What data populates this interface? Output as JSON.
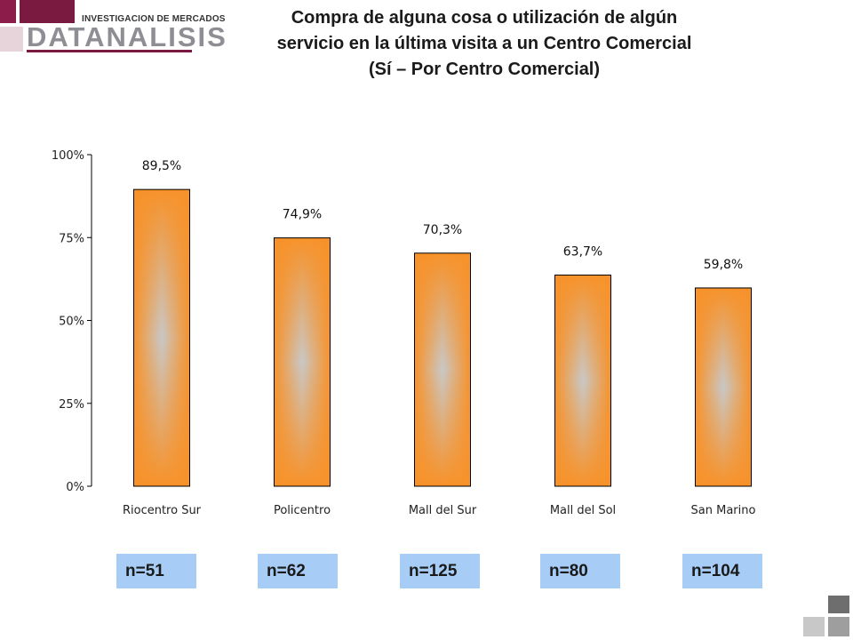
{
  "logo": {
    "subtitle": "INVESTIGACION DE MERCADOS",
    "name": "DATANALISIS"
  },
  "title": {
    "line1": "Compra de alguna cosa o utilización de algún",
    "line2": "servicio en la última visita a un Centro Comercial",
    "line3": "(Sí – Por Centro Comercial)"
  },
  "chart_data": {
    "type": "bar",
    "categories": [
      "Riocentro Sur",
      "Policentro",
      "Mall del Sur",
      "Mall del Sol",
      "San Marino"
    ],
    "values": [
      89.5,
      74.9,
      70.3,
      63.7,
      59.8
    ],
    "value_labels": [
      "89,5%",
      "74,9%",
      "70,3%",
      "63,7%",
      "59,8%"
    ],
    "ylim": [
      0,
      100
    ],
    "yticks": [
      0,
      25,
      50,
      75,
      100
    ],
    "ytick_labels": [
      "0%",
      "25%",
      "50%",
      "75%",
      "100%"
    ],
    "grid": false,
    "bar_color": "#f79a2e",
    "bar_center_color": "#c4c4c4"
  },
  "sample_sizes": [
    "n=51",
    "n=62",
    "n=125",
    "n=80",
    "n=104"
  ],
  "colors": {
    "n_box": "#a7cdf6",
    "logo_accent": "#7a1a41"
  }
}
